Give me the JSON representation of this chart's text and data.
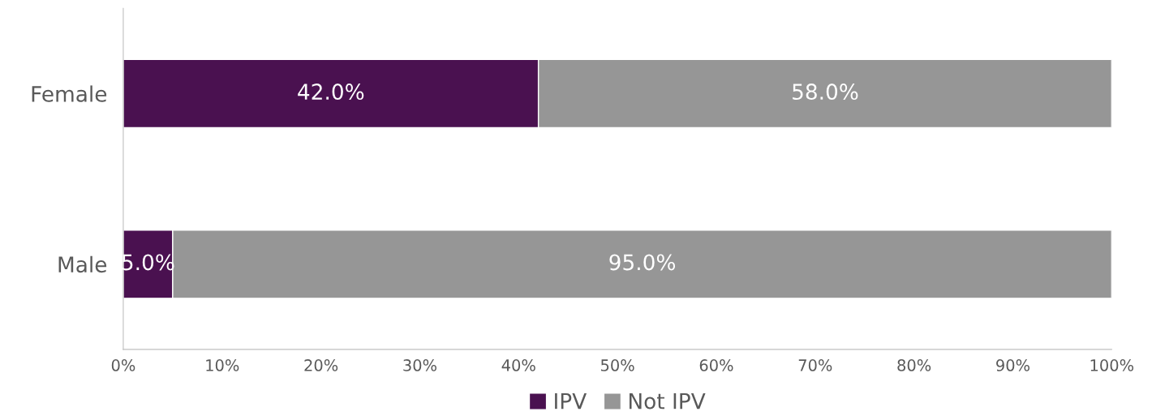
{
  "chart_data": {
    "type": "bar",
    "orientation": "horizontal",
    "stacked": true,
    "categories": [
      "Female",
      "Male"
    ],
    "series": [
      {
        "name": "IPV",
        "color": "#4a1150",
        "values": [
          42.0,
          5.0
        ],
        "value_labels": [
          "42.0%",
          "5.0%"
        ]
      },
      {
        "name": "Not IPV",
        "color": "#969696",
        "values": [
          58.0,
          95.0
        ],
        "value_labels": [
          "58.0%",
          "95.0%"
        ]
      }
    ],
    "xlim": [
      0,
      100
    ],
    "xticks": [
      {
        "value": 0,
        "label": "0%"
      },
      {
        "value": 10,
        "label": "10%"
      },
      {
        "value": 20,
        "label": "20%"
      },
      {
        "value": 30,
        "label": "30%"
      },
      {
        "value": 40,
        "label": "40%"
      },
      {
        "value": 50,
        "label": "50%"
      },
      {
        "value": 60,
        "label": "60%"
      },
      {
        "value": 70,
        "label": "70%"
      },
      {
        "value": 80,
        "label": "80%"
      },
      {
        "value": 90,
        "label": "90%"
      },
      {
        "value": 100,
        "label": "100%"
      }
    ],
    "grid": false,
    "legend": "bottom"
  }
}
